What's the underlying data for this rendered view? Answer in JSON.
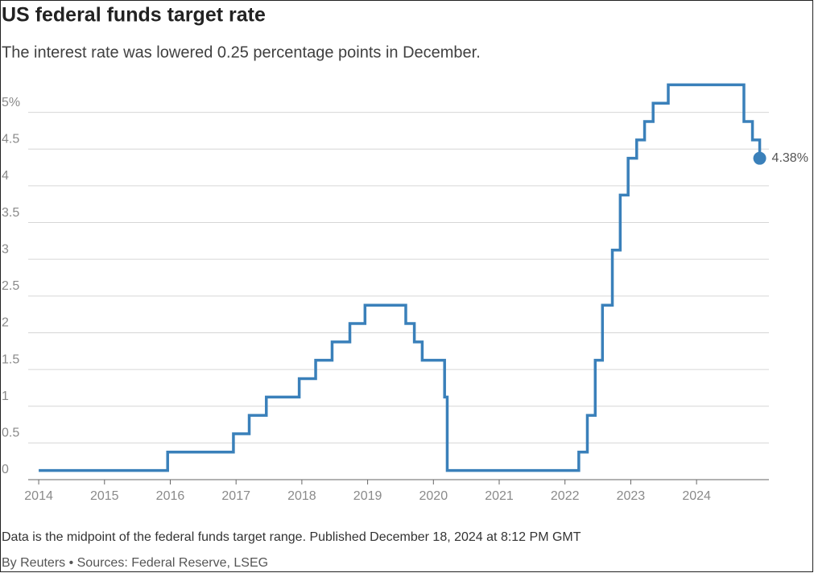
{
  "chart_data": {
    "type": "line",
    "step": "post",
    "title": "US federal funds target rate",
    "subtitle": "The interest rate was lowered 0.25 percentage points in December.",
    "note": "Data is the midpoint of the federal funds target range. Published December 18, 2024 at 8:12 PM GMT",
    "source": "By Reuters • Sources: Federal Reserve, LSEG",
    "x": [
      2014.0,
      2015.96,
      2016.96,
      2017.2,
      2017.46,
      2017.96,
      2018.21,
      2018.46,
      2018.73,
      2018.96,
      2019.58,
      2019.71,
      2019.83,
      2020.17,
      2020.21,
      2022.21,
      2022.34,
      2022.46,
      2022.57,
      2022.72,
      2022.84,
      2022.96,
      2023.09,
      2023.21,
      2023.34,
      2023.57,
      2024.72,
      2024.85,
      2024.96
    ],
    "series": [
      {
        "color": "#3a80ba",
        "values": [
          0.125,
          0.375,
          0.625,
          0.875,
          1.125,
          1.375,
          1.625,
          1.875,
          2.125,
          2.375,
          2.125,
          1.875,
          1.625,
          1.125,
          0.125,
          0.375,
          0.875,
          1.625,
          2.375,
          3.125,
          3.875,
          4.375,
          4.625,
          4.875,
          5.125,
          5.375,
          4.875,
          4.625,
          4.375
        ],
        "end_label": "4.38%"
      }
    ],
    "xlim": [
      2013.84,
      2025.1
    ],
    "xticks": [
      2014,
      2015,
      2016,
      2017,
      2018,
      2019,
      2020,
      2021,
      2022,
      2023,
      2024
    ],
    "ylim": [
      0,
      5.5
    ],
    "yticks": [
      0,
      0.5,
      1,
      1.5,
      2,
      2.5,
      3,
      3.5,
      4,
      4.5,
      {
        "value": 5,
        "label": "5%"
      }
    ],
    "grid": true
  }
}
